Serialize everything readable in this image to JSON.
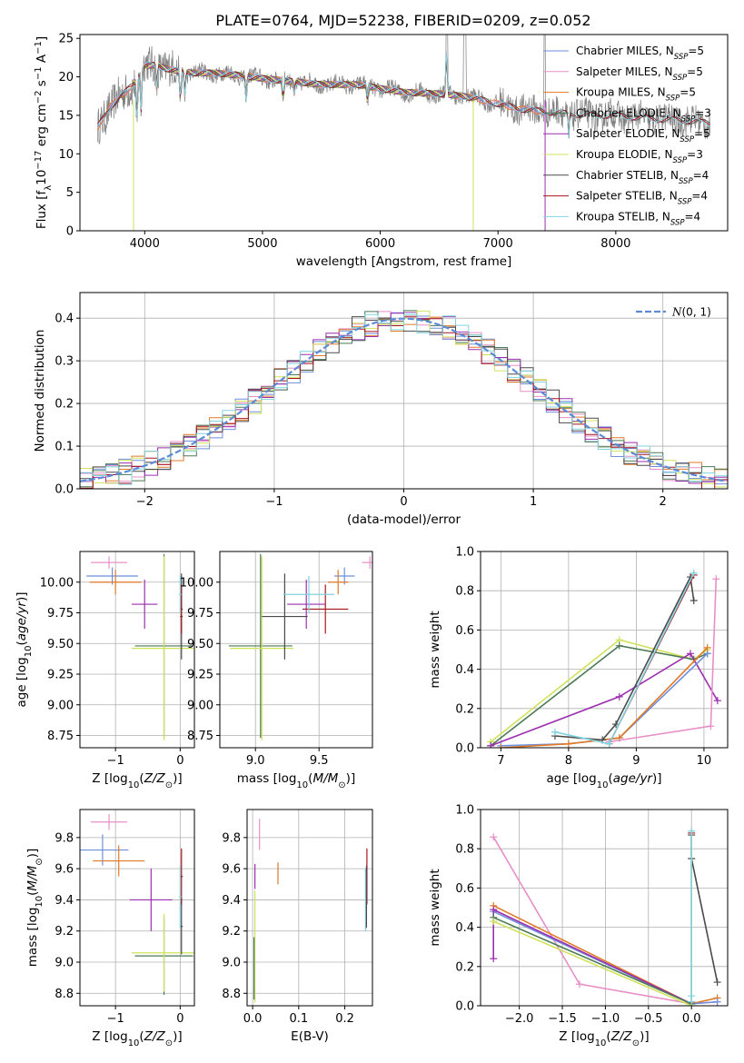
{
  "title": "PLATE=0764, MJD=52238, FIBERID=0209, z=0.052",
  "colors": {
    "Chabrier MILES": "#6e8fdc",
    "Salpeter MILES": "#e88fc8",
    "Kroupa MILES": "#e07a26",
    "Chabrier ELODIE": "#4b7a55",
    "Salpeter ELODIE": "#9b2fae",
    "Kroupa ELODIE": "#cfe25a",
    "Chabrier STELIB": "#4a4a4a",
    "Salpeter STELIB": "#a8141e",
    "Kroupa STELIB": "#7fd3de",
    "data": "#7f7f7f",
    "gaussian": "#5b8bd6"
  },
  "chart_data": [
    {
      "id": "spectrum",
      "type": "line",
      "xlabel": "wavelength [Angstrom, rest frame]",
      "ylabel": "Flux [f_λ 10⁻¹⁷ erg cm⁻² s⁻¹ A⁻¹]",
      "xlim": [
        3450,
        8950
      ],
      "ylim": [
        0,
        25.5
      ],
      "xticks": [
        "4000",
        "5000",
        "6000",
        "7000",
        "8000"
      ],
      "yticks": [
        "0",
        "5",
        "10",
        "15",
        "20",
        "25"
      ],
      "grid": false,
      "legend_loc": "top-right",
      "legend": [
        "Chabrier MILES, N_SSP=5",
        "Salpeter MILES, N_SSP=5",
        "Kroupa MILES, N_SSP=5",
        "Chabrier ELODIE, N_SSP=3",
        "Salpeter ELODIE, N_SSP=5",
        "Kroupa ELODIE, N_SSP=3",
        "Chabrier STELIB, N_SSP=4",
        "Salpeter STELIB, N_SSP=4",
        "Kroupa STELIB, N_SSP=4"
      ],
      "continuum": {
        "x": [
          3600,
          3700,
          3800,
          3900,
          4000,
          4100,
          4200,
          4400,
          4600,
          4800,
          5000,
          5200,
          5500,
          5800,
          6000,
          6200,
          6500,
          6700,
          6800,
          7000,
          7200,
          7400,
          7600,
          7800,
          8000,
          8200,
          8400,
          8600,
          8800
        ],
        "y": [
          13.5,
          16.0,
          17.5,
          19.0,
          21.5,
          21.5,
          21.0,
          20.5,
          20.5,
          20.2,
          19.8,
          19.5,
          19.0,
          19.0,
          18.5,
          18.0,
          17.8,
          17.5,
          17.2,
          16.5,
          15.8,
          15.5,
          15.2,
          15.0,
          15.0,
          14.7,
          14.5,
          14.3,
          14.0
        ]
      }
    },
    {
      "id": "residuals",
      "type": "line",
      "xlabel": "(data-model)/error",
      "ylabel": "Normed distribution",
      "xlim": [
        -2.5,
        2.5
      ],
      "ylim": [
        0,
        0.46
      ],
      "xticks": [
        "−2",
        "−1",
        "0",
        "1",
        "2"
      ],
      "yticks": [
        "0.0",
        "0.1",
        "0.2",
        "0.3",
        "0.4"
      ],
      "grid": true,
      "legend_loc": "top-right",
      "legend": [
        "N(0,1)"
      ],
      "gaussian": {
        "mean": 0,
        "sigma": 1
      }
    },
    {
      "id": "age_vs_Z",
      "type": "scatter",
      "xlabel": "Z [log10(Z/Z⊙)]",
      "ylabel": "age  [log10(age/yr)]",
      "xlim": [
        -1.55,
        0.22
      ],
      "ylim": [
        8.65,
        10.25
      ],
      "xticks": [
        "−1",
        "0"
      ],
      "yticks": [
        "8.75",
        "9.00",
        "9.25",
        "9.50",
        "9.75",
        "10.00"
      ],
      "grid": true,
      "points": [
        {
          "model": "Chabrier MILES",
          "x": -1.05,
          "xerr": 0.4,
          "y": 10.05,
          "yerr": 0.07
        },
        {
          "model": "Salpeter MILES",
          "x": -1.1,
          "xerr": 0.28,
          "y": 10.16,
          "yerr": 0.05
        },
        {
          "model": "Kroupa MILES",
          "x": -1.0,
          "xerr": 0.4,
          "y": 10.0,
          "yerr": 0.1
        },
        {
          "model": "Chabrier ELODIE",
          "x": -0.25,
          "xerr": 0.45,
          "y": 9.48,
          "yerr": 0.75
        },
        {
          "model": "Salpeter ELODIE",
          "x": -0.55,
          "xerr": 0.2,
          "y": 9.82,
          "yerr": 0.2
        },
        {
          "model": "Kroupa ELODIE",
          "x": -0.25,
          "xerr": 0.5,
          "y": 9.46,
          "yerr": 0.75
        },
        {
          "model": "Chabrier STELIB",
          "x": 0.02,
          "xerr": 0.02,
          "y": 9.72,
          "yerr": 0.35
        },
        {
          "model": "Salpeter STELIB",
          "x": 0.02,
          "xerr": 0.02,
          "y": 9.78,
          "yerr": 0.2
        },
        {
          "model": "Kroupa STELIB",
          "x": 0.0,
          "xerr": 0.02,
          "y": 9.9,
          "yerr": 0.15
        }
      ]
    },
    {
      "id": "age_vs_mass",
      "type": "scatter",
      "xlabel": "mass [log10(M/M⊙)]",
      "ylabel": "",
      "xlim": [
        8.72,
        9.92
      ],
      "ylim": [
        8.65,
        10.25
      ],
      "xticks": [
        "9.0",
        "9.5"
      ],
      "yticks": [
        "8.75",
        "9.00",
        "9.25",
        "9.50",
        "9.75",
        "10.00"
      ],
      "grid": true,
      "points": [
        {
          "model": "Chabrier MILES",
          "x": 9.7,
          "xerr": 0.08,
          "y": 10.05,
          "yerr": 0.07
        },
        {
          "model": "Salpeter MILES",
          "x": 9.9,
          "xerr": 0.06,
          "y": 10.16,
          "yerr": 0.05
        },
        {
          "model": "Kroupa MILES",
          "x": 9.65,
          "xerr": 0.08,
          "y": 10.0,
          "yerr": 0.1
        },
        {
          "model": "Chabrier ELODIE",
          "x": 9.04,
          "xerr": 0.25,
          "y": 9.48,
          "yerr": 0.75
        },
        {
          "model": "Salpeter ELODIE",
          "x": 9.4,
          "xerr": 0.15,
          "y": 9.82,
          "yerr": 0.2
        },
        {
          "model": "Kroupa ELODIE",
          "x": 9.05,
          "xerr": 0.25,
          "y": 9.46,
          "yerr": 0.75
        },
        {
          "model": "Chabrier STELIB",
          "x": 9.23,
          "xerr": 0.18,
          "y": 9.72,
          "yerr": 0.35
        },
        {
          "model": "Salpeter STELIB",
          "x": 9.55,
          "xerr": 0.18,
          "y": 9.78,
          "yerr": 0.2
        },
        {
          "model": "Kroupa STELIB",
          "x": 9.42,
          "xerr": 0.2,
          "y": 9.9,
          "yerr": 0.15
        }
      ]
    },
    {
      "id": "weight_vs_age",
      "type": "line",
      "xlabel": "age  [log10(age/yr)]",
      "ylabel": "mass weight",
      "xlim": [
        6.7,
        10.35
      ],
      "ylim": [
        0,
        1
      ],
      "xticks": [
        "7",
        "8",
        "9",
        "10"
      ],
      "yticks": [
        "0.0",
        "0.2",
        "0.4",
        "0.6",
        "0.8",
        "1.0"
      ],
      "grid": true,
      "series": [
        {
          "model": "Kroupa ELODIE",
          "x": [
            6.85,
            8.75,
            9.85,
            10.05
          ],
          "y": [
            0.03,
            0.55,
            0.45,
            0.5
          ]
        },
        {
          "model": "Chabrier ELODIE",
          "x": [
            6.85,
            8.75,
            9.85,
            10.05
          ],
          "y": [
            0.01,
            0.52,
            0.45,
            0.48
          ]
        },
        {
          "model": "Salpeter ELODIE",
          "x": [
            6.85,
            8.75,
            9.8,
            10.2
          ],
          "y": [
            0.01,
            0.26,
            0.48,
            0.24
          ]
        },
        {
          "model": "Chabrier MILES",
          "x": [
            7.0,
            8.0,
            8.75,
            10.05
          ],
          "y": [
            0.01,
            0.02,
            0.05,
            0.48
          ]
        },
        {
          "model": "Kroupa MILES",
          "x": [
            7.0,
            8.0,
            8.75,
            10.05
          ],
          "y": [
            0.0,
            0.02,
            0.05,
            0.51
          ]
        },
        {
          "model": "Salpeter MILES",
          "x": [
            8.6,
            10.1,
            10.18
          ],
          "y": [
            0.03,
            0.11,
            0.86
          ]
        },
        {
          "model": "Chabrier STELIB",
          "x": [
            7.8,
            8.5,
            8.7,
            9.8,
            9.85
          ],
          "y": [
            0.06,
            0.04,
            0.12,
            0.87,
            0.75
          ]
        },
        {
          "model": "Salpeter STELIB",
          "x": [
            8.6,
            9.85
          ],
          "y": [
            0.02,
            0.88
          ]
        },
        {
          "model": "Kroupa STELIB",
          "x": [
            7.8,
            8.6,
            9.85
          ],
          "y": [
            0.08,
            0.02,
            0.89
          ]
        }
      ]
    },
    {
      "id": "mass_vs_Z",
      "type": "scatter",
      "xlabel": "Z [log10(Z/Z⊙)]",
      "ylabel": "mass [log10(M/M⊙)]",
      "xlim": [
        -1.55,
        0.22
      ],
      "ylim": [
        8.72,
        9.98
      ],
      "xticks": [
        "−1",
        "0"
      ],
      "yticks": [
        "8.8",
        "9.0",
        "9.2",
        "9.4",
        "9.6",
        "9.8"
      ],
      "grid": true,
      "points": [
        {
          "model": "Salpeter MILES",
          "x": -1.1,
          "xerr": 0.28,
          "y": 9.9,
          "yerr": 0.05
        },
        {
          "model": "Chabrier MILES",
          "x": -1.2,
          "xerr": 0.4,
          "y": 9.72,
          "yerr": 0.1
        },
        {
          "model": "Kroupa MILES",
          "x": -0.95,
          "xerr": 0.4,
          "y": 9.65,
          "yerr": 0.1
        },
        {
          "model": "Salpeter ELODIE",
          "x": -0.45,
          "xerr": 0.33,
          "y": 9.4,
          "yerr": 0.2
        },
        {
          "model": "Chabrier ELODIE",
          "x": -0.25,
          "xerr": 0.45,
          "y": 9.04,
          "yerr": 0.25
        },
        {
          "model": "Kroupa ELODIE",
          "x": -0.25,
          "xerr": 0.5,
          "y": 9.06,
          "yerr": 0.25
        },
        {
          "model": "Chabrier STELIB",
          "x": 0.02,
          "xerr": 0.02,
          "y": 9.23,
          "yerr": 0.18
        },
        {
          "model": "Salpeter STELIB",
          "x": 0.02,
          "xerr": 0.02,
          "y": 9.55,
          "yerr": 0.18
        },
        {
          "model": "Kroupa STELIB",
          "x": 0.0,
          "xerr": 0.02,
          "y": 9.42,
          "yerr": 0.2
        }
      ]
    },
    {
      "id": "mass_vs_ebv",
      "type": "scatter",
      "xlabel": "E(B-V)",
      "ylabel": "",
      "xlim": [
        -0.012,
        0.26
      ],
      "ylim": [
        8.72,
        9.98
      ],
      "xticks": [
        "0.0",
        "0.1",
        "0.2"
      ],
      "yticks": [
        "8.8",
        "9.0",
        "9.2",
        "9.4",
        "9.6",
        "9.8"
      ],
      "grid": true,
      "points": [
        {
          "model": "Salpeter MILES",
          "x": 0.015,
          "xerr": 0,
          "y": 9.82,
          "yerr": 0.1
        },
        {
          "model": "Kroupa MILES",
          "x": 0.055,
          "xerr": 0,
          "y": 9.57,
          "yerr": 0.07
        },
        {
          "model": "Salpeter ELODIE",
          "x": 0.005,
          "xerr": 0,
          "y": 9.55,
          "yerr": 0.08
        },
        {
          "model": "Kroupa ELODIE",
          "x": 0.005,
          "xerr": 0,
          "y": 9.1,
          "yerr": 0.36
        },
        {
          "model": "Chabrier ELODIE",
          "x": 0.003,
          "xerr": 0,
          "y": 8.96,
          "yerr": 0.2
        },
        {
          "model": "Salpeter STELIB",
          "x": 0.248,
          "xerr": 0,
          "y": 9.55,
          "yerr": 0.18
        },
        {
          "model": "Kroupa STELIB",
          "x": 0.245,
          "xerr": 0,
          "y": 9.4,
          "yerr": 0.2
        },
        {
          "model": "Chabrier STELIB",
          "x": 0.247,
          "xerr": 0,
          "y": 9.42,
          "yerr": 0.2
        }
      ]
    },
    {
      "id": "weight_vs_Z",
      "type": "line",
      "xlabel": "Z [log10(Z/Z⊙)]",
      "ylabel": "mass weight",
      "xlim": [
        -2.45,
        0.42
      ],
      "ylim": [
        0,
        1
      ],
      "xticks": [
        "−2.0",
        "−1.5",
        "−1.0",
        "−0.5",
        "0.0"
      ],
      "yticks": [
        "0.0",
        "0.2",
        "0.4",
        "0.6",
        "0.8",
        "1.0"
      ],
      "grid": true,
      "series": [
        {
          "model": "Salpeter MILES",
          "x": [
            -2.3,
            -1.3,
            0.0,
            0.3
          ],
          "y": [
            0.86,
            0.11,
            0.01,
            0.02
          ]
        },
        {
          "model": "Kroupa MILES",
          "x": [
            -2.3,
            0.0,
            0.3
          ],
          "y": [
            0.51,
            0.01,
            0.04
          ]
        },
        {
          "model": "Chabrier MILES",
          "x": [
            -2.3,
            0.0,
            0.3
          ],
          "y": [
            0.48,
            0.01,
            0.02
          ]
        },
        {
          "model": "Salpeter ELODIE",
          "x": [
            -2.3,
            -2.3,
            0.0
          ],
          "y": [
            0.24,
            0.49,
            0.01
          ]
        },
        {
          "model": "Chabrier ELODIE",
          "x": [
            -2.3,
            0.0
          ],
          "y": [
            0.45,
            0.01
          ]
        },
        {
          "model": "Kroupa ELODIE",
          "x": [
            -2.3,
            0.0
          ],
          "y": [
            0.43,
            0.0
          ]
        },
        {
          "model": "Chabrier STELIB",
          "x": [
            0.0,
            0.0,
            0.3
          ],
          "y": [
            0.87,
            0.75,
            0.12
          ]
        },
        {
          "model": "Salpeter STELIB",
          "x": [
            0.0,
            0.0
          ],
          "y": [
            0.02,
            0.88
          ]
        },
        {
          "model": "Kroupa STELIB",
          "x": [
            0.0,
            0.0,
            0.0
          ],
          "y": [
            0.05,
            0.89,
            0.02
          ]
        }
      ]
    }
  ]
}
